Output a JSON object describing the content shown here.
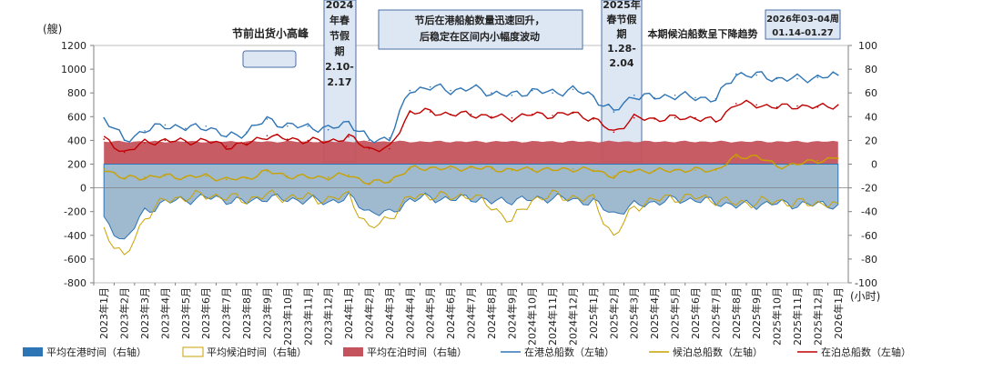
{
  "chart_data": {
    "type": "line",
    "left_axis": {
      "unit": "(艘)",
      "ticks": [
        -800,
        -600,
        -400,
        -200,
        0,
        200,
        400,
        600,
        800,
        1000,
        1200
      ],
      "range": [
        -800,
        1200
      ]
    },
    "right_axis": {
      "unit": "(小时)",
      "ticks": [
        -100,
        -80,
        -60,
        -40,
        -20,
        0,
        20,
        40,
        60,
        80,
        100
      ],
      "range": [
        -100,
        100
      ]
    },
    "x_labels": [
      "2023年1月",
      "2023年2月",
      "2023年3月",
      "2023年4月",
      "2023年5月",
      "2023年6月",
      "2023年7月",
      "2023年8月",
      "2023年9月",
      "2023年10月",
      "2023年11月",
      "2023年12月",
      "2024年1月",
      "2024年2月",
      "2024年3月",
      "2024年4月",
      "2024年5月",
      "2024年6月",
      "2024年7月",
      "2024年8月",
      "2024年9月",
      "2024年10月",
      "2024年11月",
      "2024年12月",
      "2025年1月",
      "2025年2月",
      "2025年3月",
      "2025年4月",
      "2025年5月",
      "2025年6月",
      "2025年7月",
      "2025年8月",
      "2025年9月",
      "2025年10月",
      "2025年11月",
      "2025年12月",
      "2026年1月"
    ],
    "series": [
      {
        "name": "在港总船数（左轴）",
        "axis": "left",
        "color": "#2e75b6",
        "values": [
          590,
          400,
          480,
          530,
          500,
          520,
          430,
          470,
          580,
          520,
          520,
          490,
          560,
          400,
          420,
          820,
          850,
          820,
          840,
          800,
          780,
          820,
          800,
          830,
          770,
          640,
          780,
          760,
          780,
          760,
          750,
          960,
          950,
          920,
          920,
          930,
          950
        ]
      },
      {
        "name": "在泊总船数（左轴）",
        "axis": "left",
        "color": "#c00000",
        "values": [
          410,
          300,
          380,
          400,
          390,
          400,
          350,
          370,
          440,
          410,
          400,
          390,
          430,
          330,
          330,
          640,
          640,
          620,
          620,
          600,
          590,
          620,
          610,
          630,
          580,
          470,
          590,
          580,
          590,
          590,
          560,
          710,
          700,
          680,
          690,
          680,
          700
        ]
      },
      {
        "name": "候泊总船数（左轴）",
        "axis": "left",
        "color": "#c9a200",
        "values": [
          160,
          80,
          90,
          100,
          90,
          100,
          70,
          80,
          140,
          100,
          90,
          90,
          110,
          40,
          60,
          160,
          170,
          160,
          170,
          160,
          150,
          160,
          150,
          160,
          150,
          100,
          150,
          140,
          150,
          150,
          150,
          260,
          270,
          180,
          200,
          230,
          250
        ]
      },
      {
        "name": "平均在港时间（右轴）",
        "axis": "right",
        "color": "#2e75b6",
        "fill": "#9fb9cf",
        "values": [
          -48,
          -65,
          -40,
          -32,
          -30,
          -28,
          -30,
          -32,
          -28,
          -30,
          -30,
          -32,
          -28,
          -40,
          -42,
          -30,
          -28,
          -30,
          -28,
          -32,
          -30,
          -30,
          -28,
          -30,
          -32,
          -42,
          -35,
          -32,
          -30,
          -30,
          -32,
          -35,
          -34,
          -33,
          -34,
          -34,
          -34
        ]
      },
      {
        "name": "平均候泊时间（右轴）",
        "axis": "right",
        "color": "#c9a200",
        "values": [
          -55,
          -80,
          -45,
          -30,
          -28,
          -26,
          -28,
          -30,
          -26,
          -28,
          -28,
          -30,
          -26,
          -55,
          -45,
          -28,
          -26,
          -28,
          -26,
          -36,
          -48,
          -30,
          -26,
          -28,
          -30,
          -62,
          -36,
          -30,
          -28,
          -28,
          -30,
          -33,
          -32,
          -31,
          -33,
          -33,
          -33
        ]
      },
      {
        "name": "平均在泊时间（右轴）",
        "axis": "right",
        "color": "#c5535d",
        "values": [
          19,
          19,
          19,
          19,
          19,
          19,
          19,
          19,
          19,
          19,
          19,
          19,
          19,
          19,
          19,
          19,
          19,
          19,
          19,
          19,
          19,
          19,
          19,
          19,
          19,
          19,
          19,
          19,
          19,
          19,
          19,
          19,
          19,
          19,
          19,
          19,
          19
        ]
      }
    ],
    "annotations": [
      {
        "text": "节前出货小高峰"
      },
      {
        "text": "2024年春节假期2.10-2.17",
        "lines": [
          "2024",
          "年春",
          "节假",
          "期",
          "2.10-",
          "2.17"
        ]
      },
      {
        "text": "节后在港船舶数量迅速回升，后稳定在区间内小幅度波动",
        "lines": [
          "节后在港船舶数量迅速回升，",
          "后稳定在区间内小幅度波动"
        ]
      },
      {
        "text": "2025年春节假期1.28-2.04",
        "lines": [
          "2025年",
          "春节假",
          "期",
          "1.28-",
          "2.04"
        ]
      },
      {
        "text": "本期候泊船数呈下降趋势"
      },
      {
        "text": "2026年03-04周 01.14-01.27",
        "lines": [
          "2026年03-04周",
          "01.14-01.27"
        ]
      }
    ]
  },
  "legend": [
    {
      "label": "平均在港时间（右轴）",
      "type": "fill",
      "color": "#2e75b6"
    },
    {
      "label": "平均候泊时间（右轴）",
      "type": "outline",
      "color": "#c9a200"
    },
    {
      "label": "平均在泊时间（右轴）",
      "type": "fill",
      "color": "#c5535d"
    },
    {
      "label": "在港总船数（左轴）",
      "type": "line",
      "color": "#2e75b6"
    },
    {
      "label": "候泊总船数（左轴）",
      "type": "line",
      "color": "#c9a200"
    },
    {
      "label": "在泊总船数（左轴）",
      "type": "line",
      "color": "#c00000"
    }
  ]
}
